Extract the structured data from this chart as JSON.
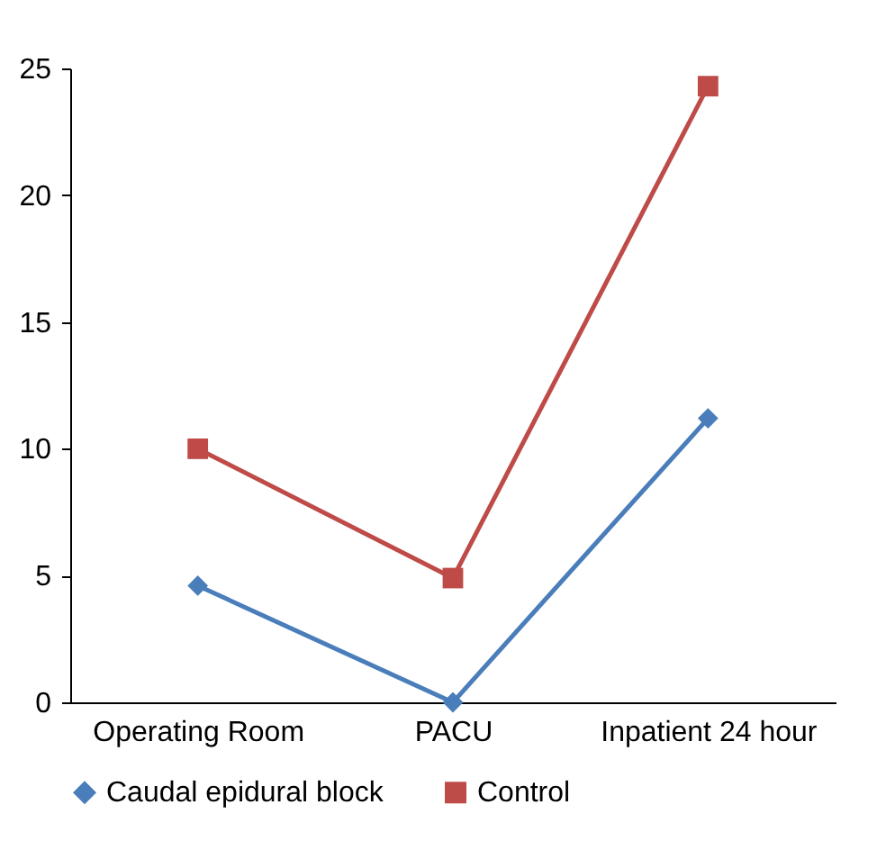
{
  "chart_data": {
    "type": "line",
    "categories": [
      "Operating Room",
      "PACU",
      "Inpatient 24 hour"
    ],
    "series": [
      {
        "name": "Caudal epidural block",
        "color": "#4a7ebb",
        "marker": "diamond",
        "values": [
          4.6,
          0,
          11.2
        ]
      },
      {
        "name": "Control",
        "color": "#be4b48",
        "marker": "square",
        "values": [
          10,
          4.9,
          24.3
        ]
      }
    ],
    "ylim": [
      0,
      25
    ],
    "yticks": [
      0,
      5,
      10,
      15,
      20,
      25
    ],
    "grid": false,
    "legend": "bottom",
    "line_style": "solid"
  }
}
